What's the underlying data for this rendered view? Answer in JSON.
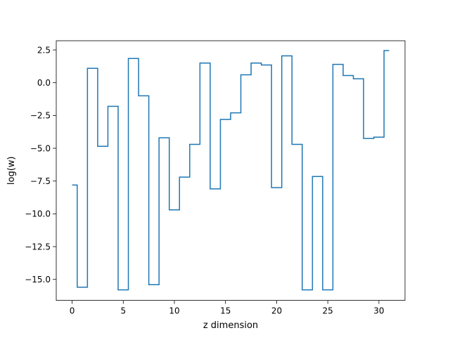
{
  "chart_data": {
    "type": "line",
    "style": "step-mid",
    "title": "",
    "xlabel": "z dimension",
    "ylabel": "log(w)",
    "xlim": [
      -1.55,
      32.55
    ],
    "ylim": [
      -16.6,
      3.2
    ],
    "x_ticks": [
      0,
      5,
      10,
      15,
      20,
      25,
      30
    ],
    "x_tick_labels": [
      "0",
      "5",
      "10",
      "15",
      "20",
      "25",
      "30"
    ],
    "y_ticks": [
      2.5,
      0.0,
      -2.5,
      -5.0,
      -7.5,
      -10.0,
      -12.5,
      -15.0
    ],
    "y_tick_labels": [
      "2.5",
      "0.0",
      "−2.5",
      "−5.0",
      "−7.5",
      "−10.0",
      "−12.5",
      "−15.0"
    ],
    "grid": false,
    "legend": "none",
    "series": [
      {
        "color": "#1f77b4",
        "x": [
          0,
          1,
          2,
          3,
          4,
          5,
          6,
          7,
          8,
          9,
          10,
          11,
          12,
          13,
          14,
          15,
          16,
          17,
          18,
          19,
          20,
          21,
          22,
          23,
          24,
          25,
          26,
          27,
          28,
          29,
          30,
          31
        ],
        "values": [
          -7.8,
          -15.6,
          1.1,
          -4.85,
          -1.8,
          -15.8,
          1.85,
          -1.0,
          -15.4,
          -4.2,
          -9.7,
          -7.2,
          -4.7,
          1.5,
          -8.1,
          -2.8,
          -2.3,
          0.6,
          1.5,
          1.35,
          -8.0,
          2.05,
          -4.7,
          -15.8,
          -7.15,
          -15.8,
          1.4,
          0.55,
          0.3,
          -4.25,
          -4.15,
          2.45
        ]
      }
    ]
  }
}
